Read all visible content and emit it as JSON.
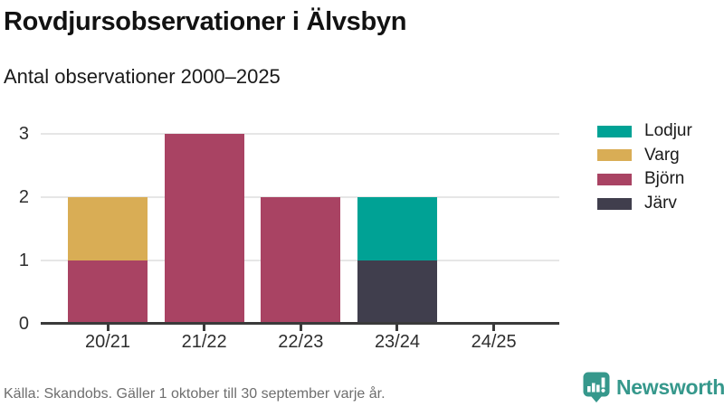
{
  "chart_data": {
    "type": "bar",
    "stacked": true,
    "title": "Rovdjursobservationer i Älvsbyn",
    "subtitle": "Antal observationer 2000–2025",
    "categories": [
      "20/21",
      "21/22",
      "22/23",
      "23/24",
      "24/25"
    ],
    "series": [
      {
        "name": "Lodjur",
        "color": "#00a295",
        "values": [
          0,
          0,
          0,
          1,
          0
        ]
      },
      {
        "name": "Varg",
        "color": "#d9ad55",
        "values": [
          1,
          0,
          0,
          0,
          0
        ]
      },
      {
        "name": "Björn",
        "color": "#a94363",
        "values": [
          1,
          3,
          2,
          0,
          0
        ]
      },
      {
        "name": "Järv",
        "color": "#403e4d",
        "values": [
          0,
          0,
          0,
          1,
          0
        ]
      }
    ],
    "stack_order_bottom_to_top": [
      "Järv",
      "Björn",
      "Varg",
      "Lodjur"
    ],
    "ylim": [
      0,
      3
    ],
    "yticks": [
      0,
      1,
      2,
      3
    ],
    "xlabel": "",
    "ylabel": "",
    "grid": true,
    "legend_position": "top-right"
  },
  "footer": {
    "source": "Källa: Skandobs. Gäller 1 oktober till 30 september varje år.",
    "brand": "Newsworthy",
    "logo_icon": "speech-bubble-bar-chart-exclamation-icon",
    "brand_color": "#36988c"
  },
  "axis_colors": {
    "axis_line": "#3a3a3a",
    "gridline": "#e6e6e6",
    "tick_label": "#2e2e2e"
  }
}
